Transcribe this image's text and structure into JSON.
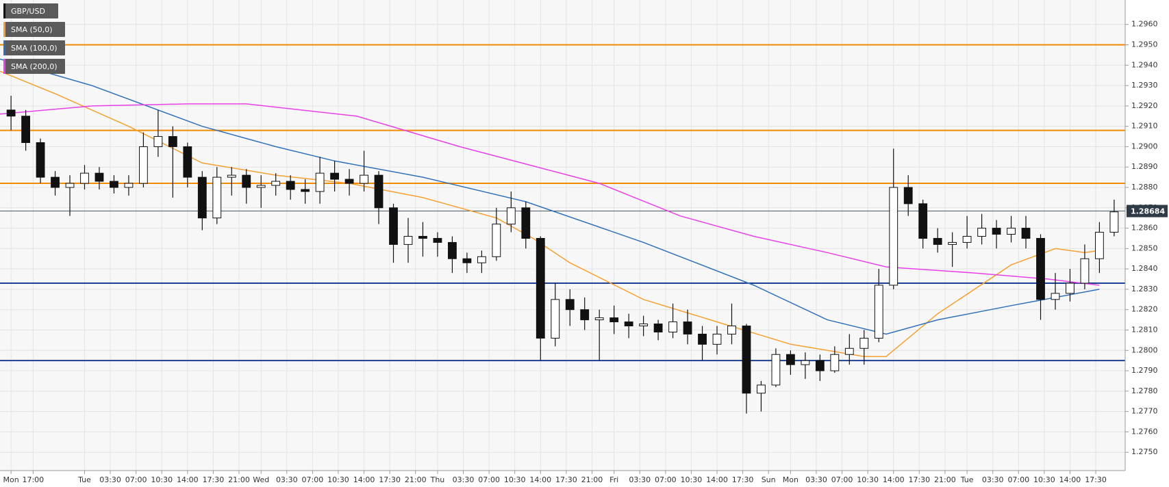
{
  "chart_data": {
    "type": "candlestick",
    "name": "GBP/USD",
    "color": "#111111",
    "up_color": "#ffffff",
    "down_color": "#111111",
    "candle_x": [
      14,
      16,
      18,
      20,
      22,
      24,
      26,
      28,
      30,
      32,
      34,
      36,
      38,
      40,
      42,
      44,
      46,
      48,
      50,
      52,
      54,
      56,
      58,
      60,
      62,
      64,
      66,
      68,
      70,
      72,
      74,
      76,
      78,
      80,
      82,
      84,
      86,
      88,
      90,
      92,
      94,
      96,
      98,
      100,
      102,
      104,
      106,
      108,
      110,
      112,
      114,
      116,
      118,
      120,
      122,
      124,
      126,
      128,
      130,
      132,
      134,
      136,
      138,
      140,
      142,
      144,
      146,
      148,
      150,
      152,
      154,
      156,
      158,
      160,
      162,
      164
    ],
    "ohlc": [
      [
        1.2918,
        1.2925,
        1.2908,
        1.2915
      ],
      [
        1.2915,
        1.2918,
        1.2898,
        1.2902
      ],
      [
        1.2902,
        1.2904,
        1.2882,
        1.2885
      ],
      [
        1.2885,
        1.2888,
        1.2876,
        1.288
      ],
      [
        1.288,
        1.2886,
        1.2866,
        1.2882
      ],
      [
        1.2882,
        1.2891,
        1.2879,
        1.2887
      ],
      [
        1.2887,
        1.289,
        1.2879,
        1.2883
      ],
      [
        1.2883,
        1.2886,
        1.2877,
        1.288
      ],
      [
        1.288,
        1.2886,
        1.2876,
        1.2882
      ],
      [
        1.2882,
        1.2907,
        1.288,
        1.29
      ],
      [
        1.29,
        1.2918,
        1.2895,
        1.2905
      ],
      [
        1.2905,
        1.291,
        1.2875,
        1.29
      ],
      [
        1.29,
        1.2902,
        1.288,
        1.2885
      ],
      [
        1.2885,
        1.2888,
        1.2859,
        1.2865
      ],
      [
        1.2865,
        1.289,
        1.2862,
        1.2885
      ],
      [
        1.2885,
        1.289,
        1.2876,
        1.2886
      ],
      [
        1.2886,
        1.2889,
        1.2872,
        1.288
      ],
      [
        1.288,
        1.2886,
        1.287,
        1.2881
      ],
      [
        1.2881,
        1.2887,
        1.2876,
        1.2883
      ],
      [
        1.2883,
        1.2886,
        1.2874,
        1.2879
      ],
      [
        1.2879,
        1.2884,
        1.2872,
        1.2878
      ],
      [
        1.2878,
        1.2895,
        1.2872,
        1.2887
      ],
      [
        1.2887,
        1.2893,
        1.2878,
        1.2884
      ],
      [
        1.2884,
        1.2889,
        1.2876,
        1.2882
      ],
      [
        1.2882,
        1.2898,
        1.2878,
        1.2886
      ],
      [
        1.2886,
        1.2888,
        1.2862,
        1.287
      ],
      [
        1.287,
        1.2872,
        1.2843,
        1.2852
      ],
      [
        1.2852,
        1.2865,
        1.2843,
        1.2856
      ],
      [
        1.2856,
        1.2863,
        1.2846,
        1.2855
      ],
      [
        1.2855,
        1.2858,
        1.2846,
        1.2853
      ],
      [
        1.2853,
        1.2856,
        1.2838,
        1.2845
      ],
      [
        1.2845,
        1.2848,
        1.2838,
        1.2843
      ],
      [
        1.2843,
        1.2849,
        1.2838,
        1.2846
      ],
      [
        1.2846,
        1.287,
        1.2844,
        1.2862
      ],
      [
        1.2862,
        1.2878,
        1.2858,
        1.287
      ],
      [
        1.287,
        1.2873,
        1.285,
        1.2855
      ],
      [
        1.2855,
        1.2856,
        1.2795,
        1.2806
      ],
      [
        1.2806,
        1.2833,
        1.2802,
        1.2825
      ],
      [
        1.2825,
        1.283,
        1.2812,
        1.282
      ],
      [
        1.282,
        1.2826,
        1.281,
        1.2815
      ],
      [
        1.2815,
        1.282,
        1.2795,
        1.2816
      ],
      [
        1.2816,
        1.2822,
        1.2808,
        1.2814
      ],
      [
        1.2814,
        1.2818,
        1.2806,
        1.2812
      ],
      [
        1.2812,
        1.2817,
        1.2807,
        1.2813
      ],
      [
        1.2813,
        1.2815,
        1.2805,
        1.2809
      ],
      [
        1.2809,
        1.2823,
        1.2806,
        1.2814
      ],
      [
        1.2814,
        1.282,
        1.2803,
        1.2808
      ],
      [
        1.2808,
        1.2812,
        1.2795,
        1.2803
      ],
      [
        1.2803,
        1.2812,
        1.2798,
        1.2808
      ],
      [
        1.2808,
        1.2823,
        1.2803,
        1.2812
      ],
      [
        1.2812,
        1.2813,
        1.2769,
        1.2779
      ],
      [
        1.2779,
        1.2785,
        1.277,
        1.2783
      ],
      [
        1.2783,
        1.2801,
        1.2782,
        1.2798
      ],
      [
        1.2798,
        1.28,
        1.2788,
        1.2793
      ],
      [
        1.2793,
        1.2799,
        1.2786,
        1.2795
      ],
      [
        1.2795,
        1.2798,
        1.2785,
        1.279
      ],
      [
        1.279,
        1.2802,
        1.2789,
        1.2798
      ],
      [
        1.2798,
        1.2808,
        1.2793,
        1.2801
      ],
      [
        1.2801,
        1.281,
        1.2793,
        1.2806
      ],
      [
        1.2806,
        1.284,
        1.2804,
        1.2832
      ],
      [
        1.2832,
        1.2899,
        1.283,
        1.288
      ],
      [
        1.288,
        1.2886,
        1.2866,
        1.2872
      ],
      [
        1.2872,
        1.2874,
        1.285,
        1.2855
      ],
      [
        1.2855,
        1.286,
        1.2848,
        1.2852
      ],
      [
        1.2852,
        1.2858,
        1.2841,
        1.2853
      ],
      [
        1.2853,
        1.2866,
        1.285,
        1.2856
      ],
      [
        1.2856,
        1.2867,
        1.2852,
        1.286
      ],
      [
        1.286,
        1.2864,
        1.285,
        1.2857
      ],
      [
        1.2857,
        1.2866,
        1.2853,
        1.286
      ],
      [
        1.286,
        1.2866,
        1.285,
        1.2855
      ],
      [
        1.2855,
        1.2857,
        1.2815,
        1.2825
      ],
      [
        1.2825,
        1.2838,
        1.282,
        1.2828
      ],
      [
        1.2828,
        1.284,
        1.2824,
        1.2833
      ],
      [
        1.2833,
        1.2852,
        1.283,
        1.2845
      ],
      [
        1.2845,
        1.2863,
        1.2838,
        1.2858
      ],
      [
        1.2858,
        1.2874,
        1.2856,
        1.2868
      ]
    ],
    "series": [
      {
        "name": "SMA (50,0)",
        "color": "#f5a030",
        "x": [
          12.5,
          20,
          30,
          40,
          50,
          60,
          70,
          80,
          85,
          90,
          100,
          110,
          120,
          130,
          133,
          140,
          150,
          156,
          160,
          162
        ],
        "values": [
          1.2937,
          1.2926,
          1.291,
          1.2892,
          1.2886,
          1.2882,
          1.2875,
          1.2865,
          1.2855,
          1.2843,
          1.2825,
          1.2814,
          1.2803,
          1.2797,
          1.2797,
          1.2818,
          1.2842,
          1.285,
          1.2848,
          1.2849
        ]
      },
      {
        "name": "SMA (100,0)",
        "color": "#3070b8",
        "x": [
          12.5,
          25,
          40,
          50,
          58,
          70,
          84,
          100,
          115,
          125,
          133,
          140,
          150,
          162
        ],
        "values": [
          1.2943,
          1.293,
          1.291,
          1.29,
          1.2893,
          1.2885,
          1.2873,
          1.2853,
          1.2832,
          1.2815,
          1.2808,
          1.2815,
          1.2822,
          1.283
        ]
      },
      {
        "name": "SMA (200,0)",
        "color": "#e840e8",
        "x": [
          12.5,
          25,
          38,
          46,
          61,
          75,
          94,
          105,
          115,
          125,
          133,
          145,
          155,
          162
        ],
        "values": [
          1.2916,
          1.292,
          1.2921,
          1.2921,
          1.2915,
          1.29,
          1.2882,
          1.2866,
          1.2856,
          1.2848,
          1.2841,
          1.2838,
          1.2835,
          1.2832
        ]
      }
    ],
    "levels": [
      {
        "value": 1.295,
        "color": "#f08a00"
      },
      {
        "value": 1.2908,
        "color": "#f08a00"
      },
      {
        "value": 1.2882,
        "color": "#f08a00"
      },
      {
        "value": 1.2833,
        "color": "#1c3f96"
      },
      {
        "value": 1.2795,
        "color": "#1c3f96"
      }
    ],
    "last_price": 1.28684,
    "xlim": [
      12.5,
      165.5
    ],
    "ylim": [
      1.2741,
      1.2972
    ],
    "grid": true,
    "xticks": [
      {
        "value": 14,
        "label": "Mon"
      },
      {
        "value": 17,
        "label": "17:00"
      },
      {
        "value": 24,
        "label": "Tue"
      },
      {
        "value": 27.5,
        "label": "03:30"
      },
      {
        "value": 31,
        "label": "07:00"
      },
      {
        "value": 34.5,
        "label": "10:30"
      },
      {
        "value": 38,
        "label": "14:00"
      },
      {
        "value": 41.5,
        "label": "17:30"
      },
      {
        "value": 45,
        "label": "21:00"
      },
      {
        "value": 48,
        "label": "Wed"
      },
      {
        "value": 51.5,
        "label": "03:30"
      },
      {
        "value": 55,
        "label": "07:00"
      },
      {
        "value": 58.5,
        "label": "10:30"
      },
      {
        "value": 62,
        "label": "14:00"
      },
      {
        "value": 65.5,
        "label": "17:30"
      },
      {
        "value": 69,
        "label": "21:00"
      },
      {
        "value": 72,
        "label": "Thu"
      },
      {
        "value": 75.5,
        "label": "03:30"
      },
      {
        "value": 79,
        "label": "07:00"
      },
      {
        "value": 82.5,
        "label": "10:30"
      },
      {
        "value": 86,
        "label": "14:00"
      },
      {
        "value": 89.5,
        "label": "17:30"
      },
      {
        "value": 93,
        "label": "21:00"
      },
      {
        "value": 96,
        "label": "Fri"
      },
      {
        "value": 99.5,
        "label": "03:30"
      },
      {
        "value": 103,
        "label": "07:00"
      },
      {
        "value": 106.5,
        "label": "10:30"
      },
      {
        "value": 110,
        "label": "14:00"
      },
      {
        "value": 113.5,
        "label": "17:30"
      },
      {
        "value": 117,
        "label": "Sun"
      },
      {
        "value": 120,
        "label": "Mon"
      },
      {
        "value": 123.5,
        "label": "03:30"
      },
      {
        "value": 127,
        "label": "07:00"
      },
      {
        "value": 130.5,
        "label": "10:30"
      },
      {
        "value": 134,
        "label": "14:00"
      },
      {
        "value": 137.5,
        "label": "17:30"
      },
      {
        "value": 141,
        "label": "21:00"
      },
      {
        "value": 144,
        "label": "Tue"
      },
      {
        "value": 147.5,
        "label": "03:30"
      },
      {
        "value": 151,
        "label": "07:00"
      },
      {
        "value": 154.5,
        "label": "10:30"
      },
      {
        "value": 158,
        "label": "14:00"
      },
      {
        "value": 161.5,
        "label": "17:30"
      }
    ],
    "yticks": [
      {
        "value": 1.275,
        "label": "1.2750"
      },
      {
        "value": 1.276,
        "label": "1.2760"
      },
      {
        "value": 1.277,
        "label": "1.2770"
      },
      {
        "value": 1.278,
        "label": "1.2780"
      },
      {
        "value": 1.279,
        "label": "1.2790"
      },
      {
        "value": 1.28,
        "label": "1.2800"
      },
      {
        "value": 1.281,
        "label": "1.2810"
      },
      {
        "value": 1.282,
        "label": "1.2820"
      },
      {
        "value": 1.283,
        "label": "1.2830"
      },
      {
        "value": 1.284,
        "label": "1.2840"
      },
      {
        "value": 1.285,
        "label": "1.2850"
      },
      {
        "value": 1.286,
        "label": "1.2860"
      },
      {
        "value": 1.287,
        "label": "1.2870"
      },
      {
        "value": 1.288,
        "label": "1.2880"
      },
      {
        "value": 1.289,
        "label": "1.2890"
      },
      {
        "value": 1.29,
        "label": "1.2900"
      },
      {
        "value": 1.291,
        "label": "1.2910"
      },
      {
        "value": 1.292,
        "label": "1.2920"
      },
      {
        "value": 1.293,
        "label": "1.2930"
      },
      {
        "value": 1.294,
        "label": "1.2940"
      },
      {
        "value": 1.295,
        "label": "1.2950"
      },
      {
        "value": 1.296,
        "label": "1.2960"
      }
    ]
  }
}
